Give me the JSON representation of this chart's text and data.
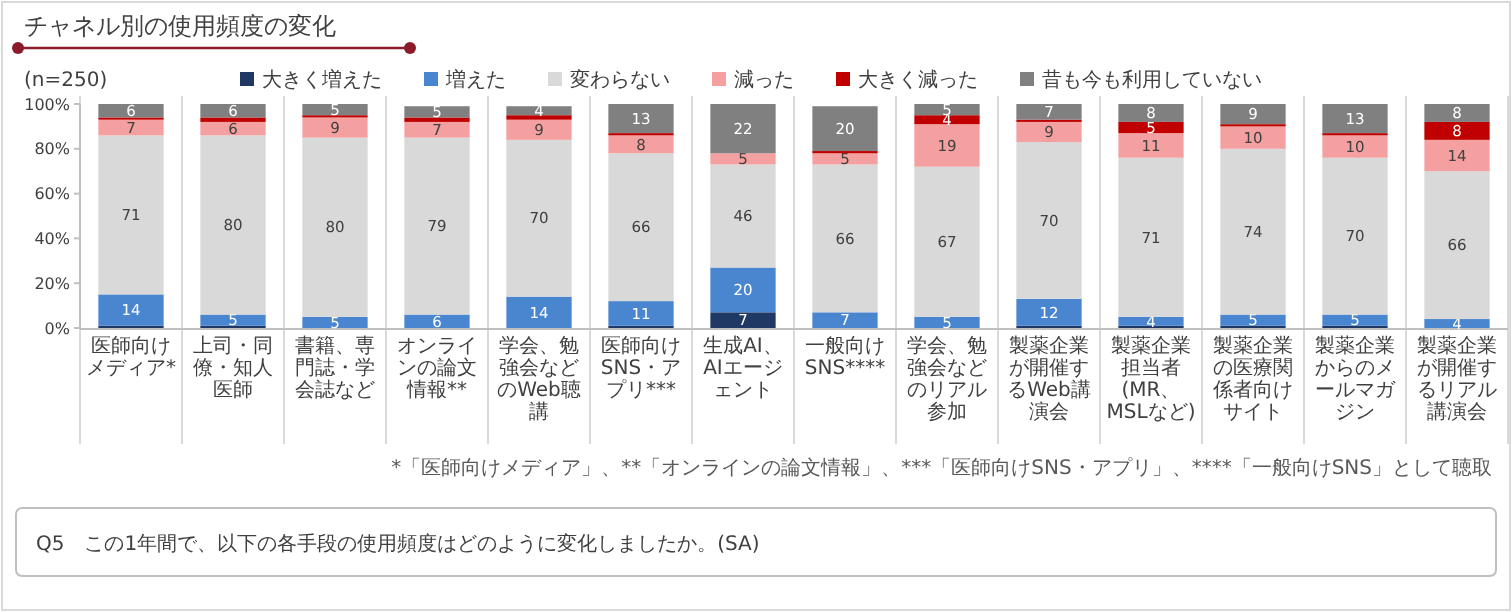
{
  "chart_data": {
    "type": "bar",
    "stacked": true,
    "title": "チャネル別の使用頻度の変化",
    "subtitle": "(n=250)",
    "categories": [
      "医師向けメディア*",
      "上司・同僚・知人医師",
      "書籍、専門誌・学会誌など",
      "オンラインの論文情報**",
      "学会、勉強会などのWeb聴講",
      "医師向けSNS・アプリ***",
      "生成AI、AIエージェント",
      "一般向けSNS****",
      "学会、勉強会などのリアル参加",
      "製薬企業が開催するWeb講演会",
      "製薬企業担当者(MR、MSLなど)",
      "製薬企業の医療関係者向けサイト",
      "製薬企業からのメールマガジン",
      "製薬企業が開催するリアル講演会"
    ],
    "series": [
      {
        "name": "大きく増えた",
        "color": "#1f3864",
        "values": [
          1,
          1,
          0,
          0,
          0,
          1,
          7,
          0,
          0,
          1,
          1,
          1,
          1,
          0
        ],
        "value_labels": [
          null,
          null,
          null,
          null,
          null,
          null,
          "7",
          null,
          null,
          null,
          null,
          null,
          null,
          null
        ]
      },
      {
        "name": "増えた",
        "color": "#4a86d0",
        "values": [
          14,
          5,
          5,
          6,
          14,
          11,
          20,
          7,
          5,
          12,
          4,
          5,
          5,
          4
        ],
        "value_labels": [
          "14",
          "5",
          "5",
          "6",
          "14",
          "11",
          "20",
          "7",
          "5",
          "12",
          "4",
          "5",
          "5",
          "4"
        ]
      },
      {
        "name": "変わらない",
        "color": "#d9d9d9",
        "values": [
          71,
          80,
          80,
          79,
          70,
          66,
          46,
          66,
          67,
          70,
          71,
          74,
          70,
          66
        ],
        "value_labels": [
          "71",
          "80",
          "80",
          "79",
          "70",
          "66",
          "46",
          "66",
          "67",
          "70",
          "71",
          "74",
          "70",
          "66"
        ]
      },
      {
        "name": "減った",
        "color": "#f4a0a0",
        "values": [
          7,
          6,
          9,
          7,
          9,
          8,
          5,
          5,
          19,
          9,
          11,
          10,
          10,
          14
        ],
        "value_labels": [
          "7",
          "6",
          "9",
          "7",
          "9",
          "8",
          "5",
          "5",
          "19",
          "9",
          "11",
          "10",
          "10",
          "14"
        ]
      },
      {
        "name": "大きく減った",
        "color": "#c00000",
        "values": [
          1,
          2,
          1,
          2,
          2,
          1,
          0,
          1,
          4,
          1,
          5,
          1,
          1,
          8
        ],
        "value_labels": [
          null,
          null,
          null,
          null,
          null,
          null,
          null,
          null,
          "4",
          null,
          "5",
          null,
          null,
          "8"
        ]
      },
      {
        "name": "昔も今も利用していない",
        "color": "#808080",
        "values": [
          6,
          6,
          5,
          5,
          4,
          13,
          22,
          20,
          5,
          7,
          8,
          9,
          13,
          8
        ],
        "value_labels": [
          "6",
          "6",
          "5",
          "5",
          "4",
          "13",
          "22",
          "20",
          "5",
          "7",
          "8",
          "9",
          "13",
          "8"
        ]
      }
    ],
    "ylim": [
      0,
      100
    ],
    "yticks": [
      {
        "value": 0,
        "label": "0%"
      },
      {
        "value": 20,
        "label": "20%"
      },
      {
        "value": 40,
        "label": "40%"
      },
      {
        "value": 60,
        "label": "60%"
      },
      {
        "value": 80,
        "label": "80%"
      },
      {
        "value": 100,
        "label": "100%"
      }
    ],
    "grid": "x",
    "legend": "top",
    "annotations": [
      "*「医師向けメディア」、**「オンラインの論文情報」、***「医師向けSNS・アプリ」、****「一般向けSNS」として聴取",
      "Q5　この1年間で、以下の各手段の使用頻度はどのように変化しましたか。(SA)"
    ]
  }
}
